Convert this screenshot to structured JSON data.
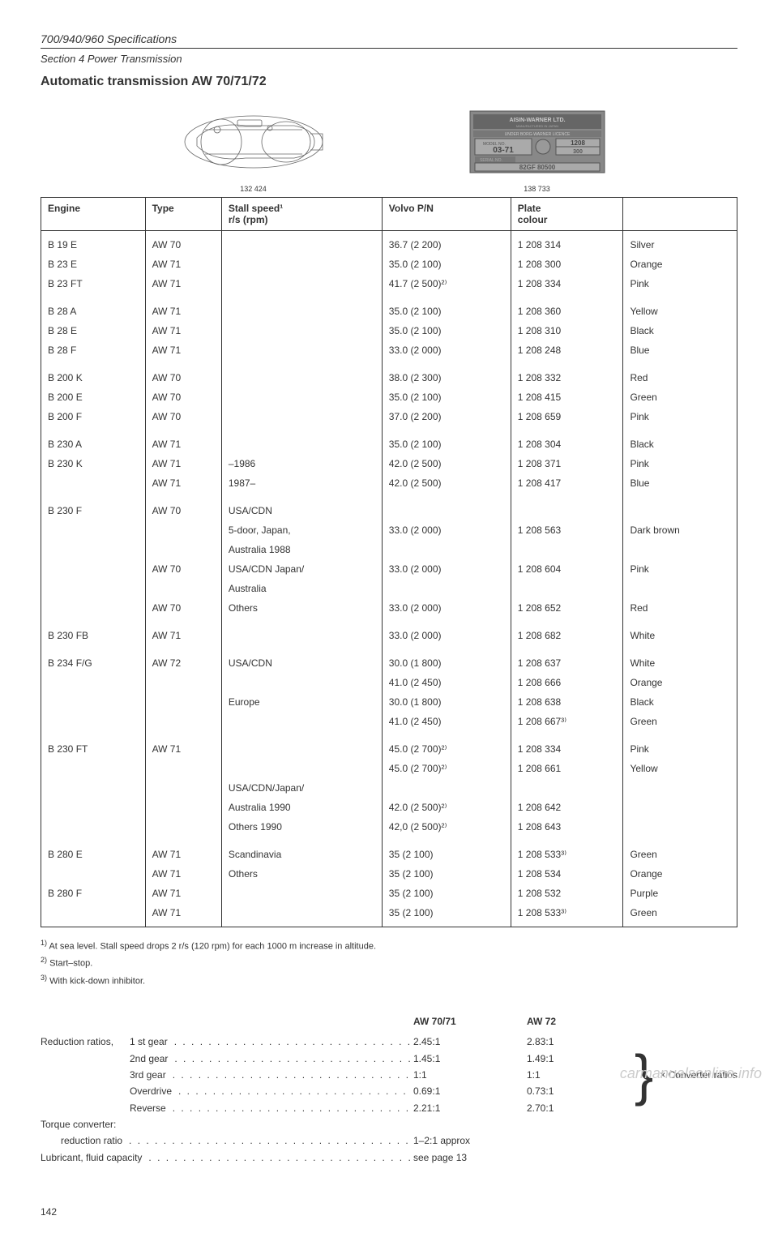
{
  "header": {
    "spec_title": "700/940/960 Specifications",
    "section": "Section 4 Power Transmission",
    "main_title": "Automatic transmission AW 70/71/72"
  },
  "image_captions": {
    "left": "132 424",
    "right": "138 733"
  },
  "plate": {
    "brand": "AISIN-WARNER LTD.",
    "sub": "MANUFACTURED IN JAPAN",
    "licence": "UNDER BORG-WARNER LICENCE",
    "model_label": "MODEL NO.",
    "model1": "03-71",
    "model2": "1208",
    "model3": "300",
    "serial_label": "SERIAL NO.",
    "serial": "82GF 80500"
  },
  "table": {
    "headers": {
      "engine": "Engine",
      "type": "Type",
      "stall": "Stall speed¹",
      "stall_sub": "r/s (rpm)",
      "volvo": "Volvo P/N",
      "plate": "Plate",
      "plate_sub": "colour"
    },
    "rows": [
      {
        "engine": "B 19 E",
        "type": "AW 70",
        "stall": "",
        "volvo": "36.7 (2 200)",
        "pn": "1 208 314",
        "colour": "Silver"
      },
      {
        "engine": "B 23 E",
        "type": "AW 71",
        "stall": "",
        "volvo": "35.0 (2 100)",
        "pn": "1 208 300",
        "colour": "Orange"
      },
      {
        "engine": "B 23 FT",
        "type": "AW 71",
        "stall": "",
        "volvo": "41.7 (2 500)²⁾",
        "pn": "1 208 334",
        "colour": "Pink"
      },
      {
        "engine": "B 28 A",
        "type": "AW 71",
        "stall": "",
        "volvo": "35.0 (2 100)",
        "pn": "1 208 360",
        "colour": "Yellow"
      },
      {
        "engine": "B 28 E",
        "type": "AW 71",
        "stall": "",
        "volvo": "35.0 (2 100)",
        "pn": "1 208 310",
        "colour": "Black"
      },
      {
        "engine": "B 28 F",
        "type": "AW 71",
        "stall": "",
        "volvo": "33.0 (2 000)",
        "pn": "1 208 248",
        "colour": "Blue"
      },
      {
        "engine": "B 200 K",
        "type": "AW 70",
        "stall": "",
        "volvo": "38.0 (2 300)",
        "pn": "1 208 332",
        "colour": "Red"
      },
      {
        "engine": "B 200 E",
        "type": "AW 70",
        "stall": "",
        "volvo": "35.0 (2 100)",
        "pn": "1 208 415",
        "colour": "Green"
      },
      {
        "engine": "B 200 F",
        "type": "AW 70",
        "stall": "",
        "volvo": "37.0 (2 200)",
        "pn": "1 208 659",
        "colour": "Pink"
      },
      {
        "engine": "B 230 A",
        "type": "AW 71",
        "stall": "",
        "volvo": "35.0 (2 100)",
        "pn": "1 208 304",
        "colour": "Black"
      },
      {
        "engine": "B 230 K",
        "type": "AW 71",
        "stall": "–1986",
        "volvo": "42.0 (2 500)",
        "pn": "1 208 371",
        "colour": "Pink"
      },
      {
        "engine": "",
        "type": "AW 71",
        "stall": "1987–",
        "volvo": "42.0 (2 500)",
        "pn": "1 208 417",
        "colour": "Blue"
      },
      {
        "engine": "B 230 F",
        "type": "AW 70",
        "stall": "USA/CDN",
        "volvo": "",
        "pn": "",
        "colour": ""
      },
      {
        "engine": "",
        "type": "",
        "stall": "5-door, Japan,",
        "volvo": "33.0 (2 000)",
        "pn": "1 208 563",
        "colour": "Dark brown"
      },
      {
        "engine": "",
        "type": "",
        "stall": "Australia 1988",
        "volvo": "",
        "pn": "",
        "colour": ""
      },
      {
        "engine": "",
        "type": "AW 70",
        "stall": "USA/CDN Japan/",
        "volvo": "33.0 (2 000)",
        "pn": "1 208 604",
        "colour": "Pink"
      },
      {
        "engine": "",
        "type": "",
        "stall": "Australia",
        "volvo": "",
        "pn": "",
        "colour": ""
      },
      {
        "engine": "",
        "type": "AW 70",
        "stall": "Others",
        "volvo": "33.0 (2 000)",
        "pn": "1 208 652",
        "colour": "Red"
      },
      {
        "engine": "B 230 FB",
        "type": "AW 71",
        "stall": "",
        "volvo": "33.0 (2 000)",
        "pn": "1 208 682",
        "colour": "White"
      },
      {
        "engine": "B 234 F/G",
        "type": "AW 72",
        "stall": "USA/CDN",
        "volvo": "30.0 (1 800)",
        "pn": "1 208 637",
        "colour": "White"
      },
      {
        "engine": "",
        "type": "",
        "stall": "",
        "volvo": "41.0 (2 450)",
        "pn": "1 208 666",
        "colour": "Orange"
      },
      {
        "engine": "",
        "type": "",
        "stall": "Europe",
        "volvo": "30.0 (1 800)",
        "pn": "1 208 638",
        "colour": "Black"
      },
      {
        "engine": "",
        "type": "",
        "stall": "",
        "volvo": "41.0 (2 450)",
        "pn": "1 208 667³⁾",
        "colour": "Green"
      },
      {
        "engine": "B 230 FT",
        "type": "AW 71",
        "stall": "",
        "volvo": "45.0 (2 700)²⁾",
        "pn": "1 208 334",
        "colour": "Pink"
      },
      {
        "engine": "",
        "type": "",
        "stall": "",
        "volvo": "45.0 (2 700)²⁾",
        "pn": "1 208 661",
        "colour": "Yellow"
      },
      {
        "engine": "",
        "type": "",
        "stall": "USA/CDN/Japan/",
        "volvo": "",
        "pn": "",
        "colour": ""
      },
      {
        "engine": "",
        "type": "",
        "stall": "Australia 1990",
        "volvo": "42.0 (2 500)²⁾",
        "pn": "1 208 642",
        "colour": ""
      },
      {
        "engine": "",
        "type": "",
        "stall": "Others 1990",
        "volvo": "42,0 (2 500)²⁾",
        "pn": "1 208 643",
        "colour": ""
      },
      {
        "engine": "B 280 E",
        "type": "AW 71",
        "stall": "Scandinavia",
        "volvo": "35 (2 100)",
        "pn": "1 208 533³⁾",
        "colour": "Green"
      },
      {
        "engine": "",
        "type": "AW 71",
        "stall": "Others",
        "volvo": "35 (2 100)",
        "pn": "1 208 534",
        "colour": "Orange"
      },
      {
        "engine": "B 280 F",
        "type": "AW 71",
        "stall": "",
        "volvo": "35 (2 100)",
        "pn": "1 208 532",
        "colour": "Purple"
      },
      {
        "engine": "",
        "type": "AW 71",
        "stall": "",
        "volvo": "35 (2 100)",
        "pn": "1 208 533³⁾",
        "colour": "Green"
      }
    ]
  },
  "footnotes": {
    "f1": "At sea level. Stall speed drops 2 r/s (120 rpm) for each 1000 m increase in altitude.",
    "f2": "Start–stop.",
    "f3": "With kick-down inhibitor."
  },
  "ratios": {
    "header1": "AW 70/71",
    "header2": "AW 72",
    "label": "Reduction ratios,",
    "gears": [
      {
        "name": "1 st gear",
        "v1": "2.45:1",
        "v2": "2.83:1"
      },
      {
        "name": "2nd gear",
        "v1": "1.45:1",
        "v2": "1.49:1"
      },
      {
        "name": "3rd gear",
        "v1": "1:1",
        "v2": "1:1"
      },
      {
        "name": "Overdrive",
        "v1": "0.69:1",
        "v2": "0.73:1"
      },
      {
        "name": "Reverse",
        "v1": "2.21:1",
        "v2": "2.70:1"
      }
    ],
    "converter_note": "× Converter ratios",
    "torque_label": "Torque converter:",
    "reduction_label": "reduction ratio",
    "reduction_val": "1–2:1 approx",
    "lubricant_label": "Lubricant, fluid capacity",
    "lubricant_val": "see page 13"
  },
  "page_number": "142",
  "watermark": "carmanualsonline.info"
}
